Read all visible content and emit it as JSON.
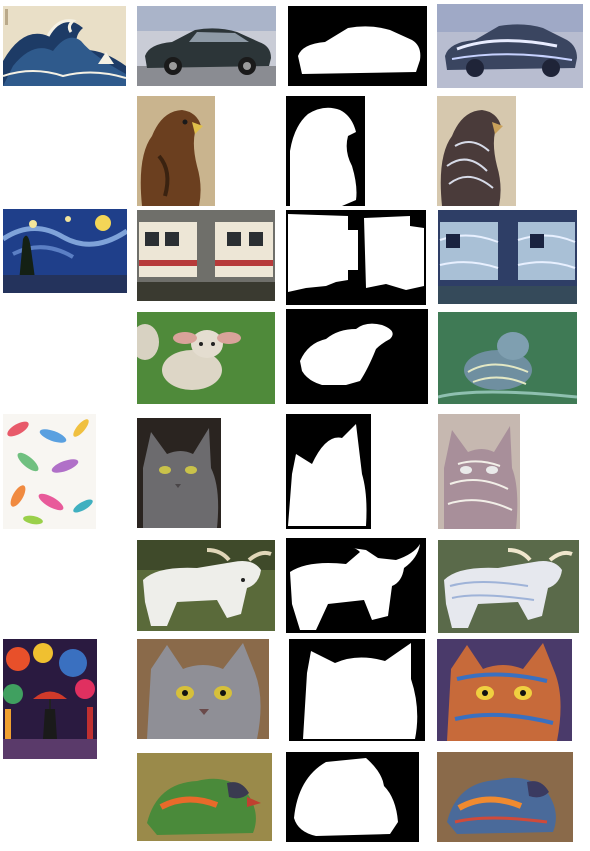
{
  "figure": {
    "rows": [
      {
        "style": "great-wave",
        "content": "car",
        "mask": "car-silhouette",
        "result": "stylized-car"
      },
      {
        "style": "",
        "content": "eagle",
        "mask": "eagle-silhouette",
        "result": "stylized-eagle"
      },
      {
        "style": "starry-night",
        "content": "train",
        "mask": "train-silhouette",
        "result": "stylized-train"
      },
      {
        "style": "",
        "content": "lamb",
        "mask": "lamb-silhouette",
        "result": "stylized-lamb"
      },
      {
        "style": "feathers",
        "content": "gray-cat",
        "mask": "gray-cat-silhouette",
        "result": "stylized-gray-cat"
      },
      {
        "style": "",
        "content": "cow",
        "mask": "cow-silhouette",
        "result": "stylized-cow"
      },
      {
        "style": "rain-umbrella-painting",
        "content": "cat-face",
        "mask": "cat-face-silhouette",
        "result": "stylized-cat-face"
      },
      {
        "style": "",
        "content": "bird",
        "mask": "bird-silhouette",
        "result": "stylized-bird"
      }
    ]
  }
}
